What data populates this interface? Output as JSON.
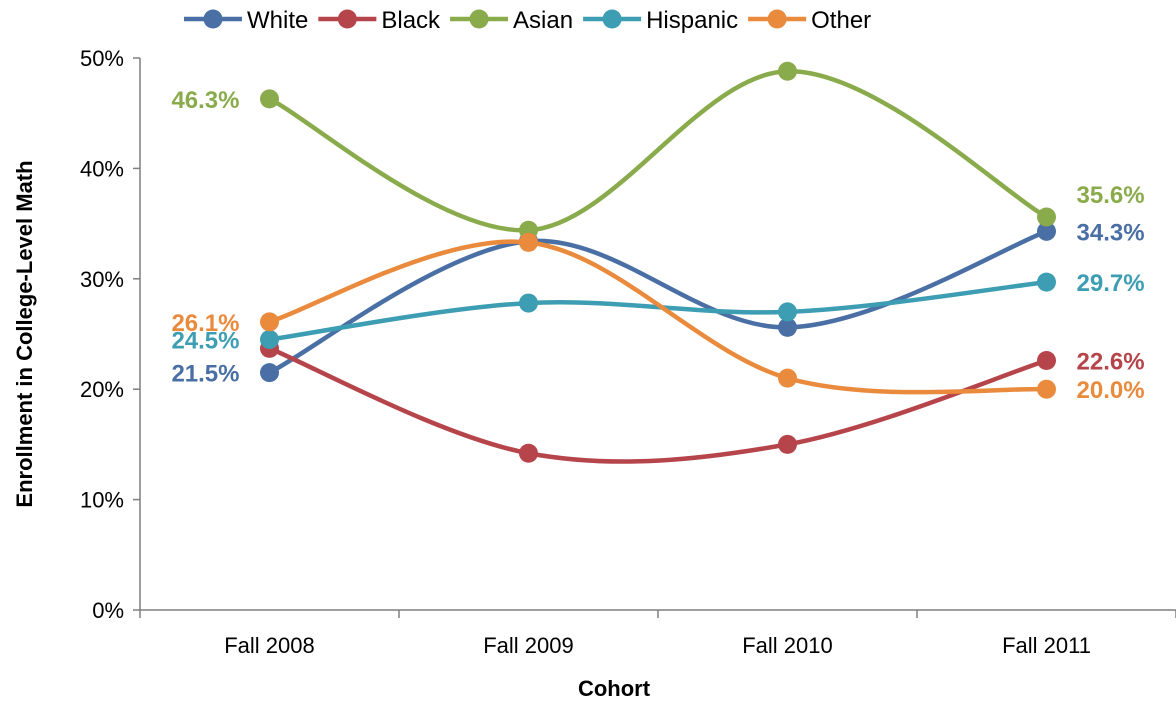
{
  "chart_data": {
    "type": "line",
    "title": "",
    "xlabel": "Cohort",
    "ylabel": "Enrollment in College-Level Math",
    "categories": [
      "Fall 2008",
      "Fall 2009",
      "Fall 2010",
      "Fall 2011"
    ],
    "ylim": [
      0,
      50
    ],
    "yticks": [
      0,
      10,
      20,
      30,
      40,
      50
    ],
    "ytick_labels": [
      "0%",
      "10%",
      "20%",
      "30%",
      "40%",
      "50%"
    ],
    "smoothed": true,
    "grid": false,
    "legend_position": "top",
    "series": [
      {
        "name": "White",
        "color": "#4a6fa5",
        "values": [
          21.5,
          33.4,
          25.6,
          34.3
        ],
        "labels": [
          {
            "index": 0,
            "text": "21.5%"
          },
          {
            "index": 3,
            "text": "34.3%"
          }
        ]
      },
      {
        "name": "Black",
        "color": "#b5454a",
        "values": [
          23.7,
          14.2,
          15.0,
          22.6
        ],
        "labels": [
          {
            "index": 3,
            "text": "22.6%"
          }
        ]
      },
      {
        "name": "Asian",
        "color": "#8aab4c",
        "values": [
          46.3,
          34.4,
          48.8,
          35.6
        ],
        "labels": [
          {
            "index": 0,
            "text": "46.3%"
          },
          {
            "index": 3,
            "text": "35.6%"
          }
        ]
      },
      {
        "name": "Hispanic",
        "color": "#3d9db3",
        "values": [
          24.5,
          27.8,
          27.0,
          29.7
        ],
        "labels": [
          {
            "index": 0,
            "text": "24.5%"
          },
          {
            "index": 3,
            "text": "29.7%"
          }
        ]
      },
      {
        "name": "Other",
        "color": "#e98a3c",
        "values": [
          26.1,
          33.3,
          21.0,
          20.0
        ],
        "labels": [
          {
            "index": 0,
            "text": "26.1%"
          },
          {
            "index": 3,
            "text": "20.0%"
          }
        ]
      }
    ]
  }
}
